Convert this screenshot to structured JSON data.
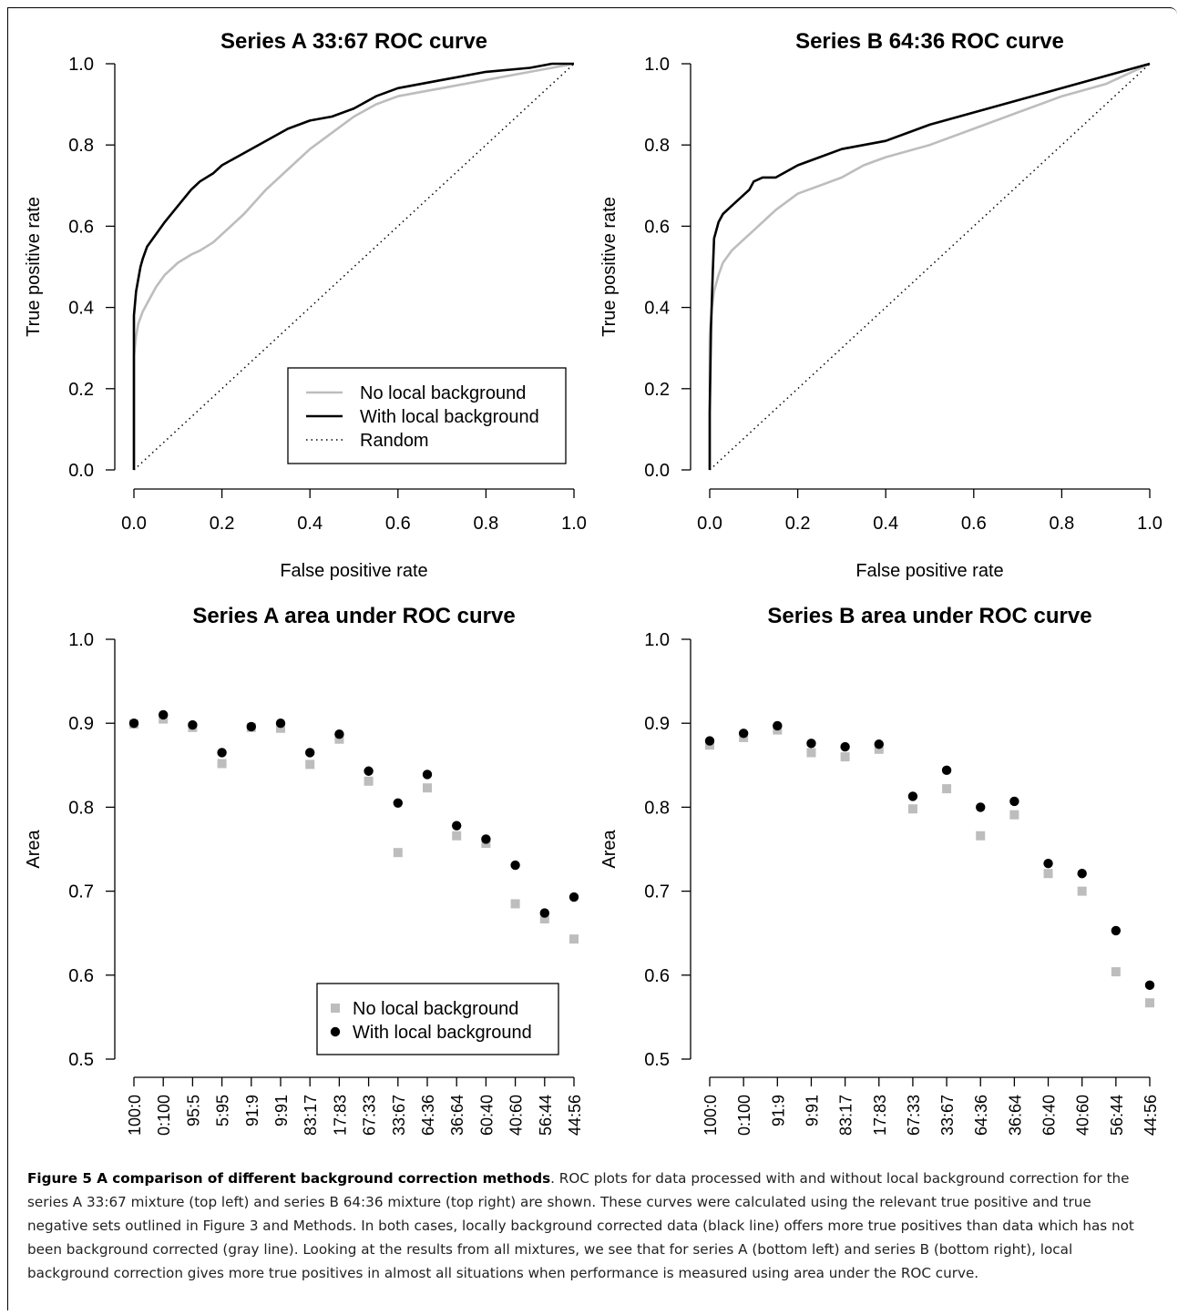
{
  "chart_data": [
    {
      "id": "roc_a",
      "type": "line",
      "title": "Series A 33:67 ROC curve",
      "xlabel": "False positive rate",
      "ylabel": "True positive rate",
      "xlim": [
        0,
        1
      ],
      "ylim": [
        0,
        1
      ],
      "xticks": [
        "0.0",
        "0.2",
        "0.4",
        "0.6",
        "0.8",
        "1.0"
      ],
      "yticks": [
        "0.0",
        "0.2",
        "0.4",
        "0.6",
        "0.8",
        "1.0"
      ],
      "legend": {
        "position": "bottom-right"
      },
      "series": [
        {
          "name": "No local background",
          "color": "#bdbdbd",
          "style": "solid",
          "x": [
            0.0,
            0.0,
            0.005,
            0.01,
            0.02,
            0.03,
            0.05,
            0.07,
            0.1,
            0.13,
            0.15,
            0.18,
            0.2,
            0.25,
            0.3,
            0.35,
            0.4,
            0.45,
            0.5,
            0.55,
            0.6,
            0.65,
            0.7,
            0.8,
            0.9,
            0.95,
            1.0
          ],
          "y": [
            0.0,
            0.28,
            0.33,
            0.36,
            0.39,
            0.41,
            0.45,
            0.48,
            0.51,
            0.53,
            0.54,
            0.56,
            0.58,
            0.63,
            0.69,
            0.74,
            0.79,
            0.83,
            0.87,
            0.9,
            0.92,
            0.93,
            0.94,
            0.96,
            0.98,
            0.99,
            1.0
          ]
        },
        {
          "name": "With local background",
          "color": "#000000",
          "style": "solid",
          "x": [
            0.0,
            0.0,
            0.005,
            0.01,
            0.015,
            0.02,
            0.03,
            0.05,
            0.07,
            0.1,
            0.13,
            0.15,
            0.18,
            0.2,
            0.25,
            0.3,
            0.35,
            0.4,
            0.45,
            0.5,
            0.55,
            0.6,
            0.7,
            0.8,
            0.9,
            0.95,
            1.0
          ],
          "y": [
            0.0,
            0.38,
            0.44,
            0.47,
            0.5,
            0.52,
            0.55,
            0.58,
            0.61,
            0.65,
            0.69,
            0.71,
            0.73,
            0.75,
            0.78,
            0.81,
            0.84,
            0.86,
            0.87,
            0.89,
            0.92,
            0.94,
            0.96,
            0.98,
            0.99,
            1.0,
            1.0
          ]
        },
        {
          "name": "Random",
          "color": "#000000",
          "style": "dotted",
          "x": [
            0,
            1
          ],
          "y": [
            0,
            1
          ]
        }
      ]
    },
    {
      "id": "roc_b",
      "type": "line",
      "title": "Series B 64:36 ROC curve",
      "xlabel": "False positive rate",
      "ylabel": "True positive rate",
      "xlim": [
        0,
        1
      ],
      "ylim": [
        0,
        1
      ],
      "xticks": [
        "0.0",
        "0.2",
        "0.4",
        "0.6",
        "0.8",
        "1.0"
      ],
      "yticks": [
        "0.0",
        "0.2",
        "0.4",
        "0.6",
        "0.8",
        "1.0"
      ],
      "series": [
        {
          "name": "No local background",
          "color": "#bdbdbd",
          "style": "solid",
          "x": [
            0.0,
            0.0,
            0.005,
            0.01,
            0.02,
            0.03,
            0.05,
            0.07,
            0.1,
            0.13,
            0.15,
            0.2,
            0.25,
            0.3,
            0.35,
            0.4,
            0.5,
            0.6,
            0.7,
            0.8,
            0.9,
            1.0
          ],
          "y": [
            0.0,
            0.33,
            0.4,
            0.44,
            0.48,
            0.51,
            0.54,
            0.56,
            0.59,
            0.62,
            0.64,
            0.68,
            0.7,
            0.72,
            0.75,
            0.77,
            0.8,
            0.84,
            0.88,
            0.92,
            0.95,
            1.0
          ]
        },
        {
          "name": "With local background",
          "color": "#000000",
          "style": "solid",
          "x": [
            0.0,
            0.0,
            0.003,
            0.007,
            0.01,
            0.02,
            0.03,
            0.05,
            0.07,
            0.09,
            0.1,
            0.12,
            0.15,
            0.2,
            0.3,
            0.4,
            0.5,
            0.6,
            0.7,
            0.8,
            0.9,
            1.0
          ],
          "y": [
            0.0,
            0.14,
            0.35,
            0.49,
            0.57,
            0.61,
            0.63,
            0.65,
            0.67,
            0.69,
            0.71,
            0.72,
            0.72,
            0.75,
            0.79,
            0.81,
            0.85,
            0.88,
            0.91,
            0.94,
            0.97,
            1.0
          ]
        },
        {
          "name": "Random",
          "color": "#000000",
          "style": "dotted",
          "x": [
            0,
            1
          ],
          "y": [
            0,
            1
          ]
        }
      ]
    },
    {
      "id": "auc_a",
      "type": "scatter",
      "title": "Series A area under ROC curve",
      "xlabel": "",
      "ylabel": "Area",
      "ylim": [
        0.5,
        1.0
      ],
      "yticks": [
        "0.5",
        "0.6",
        "0.7",
        "0.8",
        "0.9",
        "1.0"
      ],
      "legend": {
        "position": "bottom-left"
      },
      "categories": [
        "100:0",
        "0:100",
        "95:5",
        "5:95",
        "91:9",
        "9:91",
        "83:17",
        "17:83",
        "67:33",
        "33:67",
        "64:36",
        "36:64",
        "60:40",
        "40:60",
        "56:44",
        "44:56"
      ],
      "series": [
        {
          "name": "No local background",
          "color": "#bdbdbd",
          "marker": "square",
          "values": [
            0.899,
            0.905,
            0.895,
            0.852,
            0.895,
            0.894,
            0.851,
            0.881,
            0.831,
            0.746,
            0.823,
            0.766,
            0.757,
            0.685,
            0.667,
            0.643
          ]
        },
        {
          "name": "With local background",
          "color": "#000000",
          "marker": "circle",
          "values": [
            0.9,
            0.91,
            0.898,
            0.865,
            0.896,
            0.9,
            0.865,
            0.887,
            0.843,
            0.805,
            0.839,
            0.778,
            0.762,
            0.731,
            0.674,
            0.693
          ]
        }
      ]
    },
    {
      "id": "auc_b",
      "type": "scatter",
      "title": "Series B area under ROC curve",
      "xlabel": "",
      "ylabel": "Area",
      "ylim": [
        0.5,
        1.0
      ],
      "yticks": [
        "0.5",
        "0.6",
        "0.7",
        "0.8",
        "0.9",
        "1.0"
      ],
      "categories": [
        "100:0",
        "0:100",
        "91:9",
        "9:91",
        "83:17",
        "17:83",
        "67:33",
        "33:67",
        "64:36",
        "36:64",
        "60:40",
        "40:60",
        "56:44",
        "44:56"
      ],
      "series": [
        {
          "name": "No local background",
          "color": "#bdbdbd",
          "marker": "square",
          "values": [
            0.874,
            0.883,
            0.892,
            0.865,
            0.86,
            0.869,
            0.798,
            0.822,
            0.766,
            0.791,
            0.721,
            0.7,
            0.604,
            0.567
          ]
        },
        {
          "name": "With local background",
          "color": "#000000",
          "marker": "circle",
          "values": [
            0.879,
            0.888,
            0.897,
            0.876,
            0.872,
            0.875,
            0.813,
            0.844,
            0.8,
            0.807,
            0.733,
            0.721,
            0.653,
            0.588
          ]
        }
      ]
    }
  ],
  "caption": {
    "lead": "Figure 5 A comparison of different background correction methods",
    "text": ". ROC plots for data processed with and without local background correction for the series A 33:67 mixture (top left) and series B 64:36 mixture (top right) are shown. These curves were calculated using the relevant true positive and true negative sets outlined in Figure 3 and Methods. In both cases, locally background corrected data (black line) offers more true positives than data which has not been background corrected (gray line). Looking at the results from all mixtures, we see that for series A (bottom left) and series B (bottom right), local background correction gives more true positives in almost all situations when performance is measured using area under the ROC curve."
  }
}
